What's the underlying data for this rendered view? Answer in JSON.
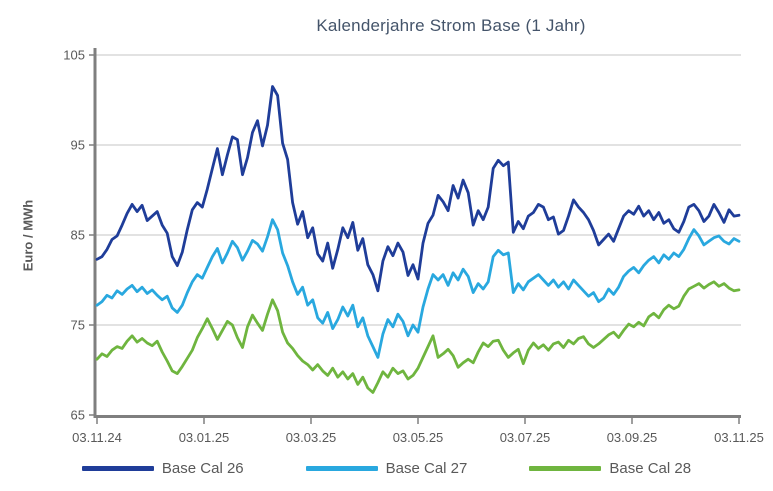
{
  "page": {
    "background": "#FFFFFF"
  },
  "chart_data": {
    "type": "line",
    "title": "Kalenderjahre Strom Base (1 Jahr)",
    "ylabel": "Euro / MWh",
    "xlabel": "",
    "ylim": [
      65,
      105
    ],
    "y_ticks": [
      65,
      75,
      85,
      95,
      105
    ],
    "x_tick_labels": [
      "03.11.24",
      "03.01.25",
      "03.03.25",
      "03.05.25",
      "03.07.25",
      "03.09.25",
      "03.11.25"
    ],
    "grid": true,
    "legend_position": "bottom",
    "colors": {
      "title": "#44546A",
      "axis": "#7F7F7F",
      "gridline": "#D9D9D9",
      "tick_label": "#595959",
      "legend_label": "#595959"
    },
    "series": [
      {
        "name": "Base Cal 26",
        "color": "#1F3D99",
        "values": [
          82.3,
          82.6,
          83.4,
          84.5,
          84.9,
          86.1,
          87.4,
          88.4,
          87.6,
          88.3,
          86.6,
          87.1,
          87.6,
          86.1,
          85.2,
          82.6,
          81.6,
          83.1,
          85.6,
          87.8,
          88.6,
          88.1,
          90.1,
          92.4,
          94.6,
          91.7,
          93.9,
          95.9,
          95.6,
          91.7,
          93.6,
          96.4,
          97.7,
          94.9,
          97.2,
          101.5,
          100.5,
          95.2,
          93.4,
          88.6,
          86.2,
          87.6,
          84.7,
          85.8,
          82.9,
          82.1,
          84.1,
          81.3,
          83.4,
          85.8,
          84.7,
          86.4,
          83.3,
          84.6,
          81.7,
          80.6,
          78.8,
          82.1,
          83.7,
          82.7,
          84.1,
          83.1,
          80.5,
          81.7,
          80.1,
          84.1,
          86.3,
          87.2,
          89.4,
          88.7,
          87.7,
          90.5,
          89.1,
          91.1,
          89.7,
          86.1,
          87.7,
          86.7,
          88.1,
          92.4,
          93.3,
          92.7,
          93.1,
          85.3,
          86.5,
          85.7,
          87.1,
          87.5,
          88.4,
          88.1,
          86.7,
          87.0,
          85.1,
          85.5,
          87.1,
          88.9,
          88.1,
          87.5,
          86.7,
          85.5,
          83.9,
          84.5,
          85.1,
          84.3,
          85.7,
          87.1,
          87.7,
          87.3,
          88.2,
          87.1,
          87.7,
          86.7,
          87.5,
          86.3,
          86.7,
          85.7,
          85.3,
          86.5,
          88.1,
          88.4,
          87.7,
          86.5,
          87.1,
          88.4,
          87.5,
          86.4,
          87.8,
          87.1,
          87.2
        ]
      },
      {
        "name": "Base Cal 27",
        "color": "#29A8DF",
        "values": [
          77.2,
          77.6,
          78.3,
          78.0,
          78.8,
          78.4,
          79.0,
          79.4,
          78.7,
          79.2,
          78.5,
          78.9,
          78.3,
          77.8,
          78.2,
          76.9,
          76.4,
          77.2,
          78.6,
          79.8,
          80.6,
          80.2,
          81.4,
          82.6,
          83.5,
          81.9,
          83.0,
          84.3,
          83.6,
          82.2,
          83.2,
          84.4,
          84.0,
          83.2,
          84.8,
          86.7,
          85.6,
          83.0,
          81.6,
          79.8,
          78.4,
          79.2,
          77.2,
          77.8,
          75.8,
          75.2,
          76.4,
          74.6,
          75.6,
          77.0,
          76.0,
          77.2,
          74.8,
          75.8,
          73.8,
          72.6,
          71.4,
          74.0,
          75.6,
          74.8,
          76.2,
          75.4,
          73.8,
          75.0,
          74.2,
          77.0,
          79.0,
          80.6,
          80.0,
          80.6,
          79.4,
          80.8,
          80.0,
          81.2,
          80.4,
          78.6,
          79.6,
          79.0,
          79.8,
          82.6,
          83.3,
          82.8,
          83.0,
          78.6,
          79.6,
          78.9,
          79.8,
          80.2,
          80.6,
          80.0,
          79.4,
          80.0,
          79.2,
          79.8,
          79.0,
          80.0,
          79.4,
          78.8,
          78.2,
          78.6,
          77.6,
          78.0,
          79.0,
          78.4,
          79.2,
          80.4,
          81.0,
          81.4,
          80.8,
          81.6,
          82.2,
          82.6,
          81.9,
          82.8,
          82.3,
          83.0,
          82.6,
          83.4,
          84.6,
          85.6,
          84.9,
          83.9,
          84.3,
          84.7,
          84.9,
          84.3,
          84.0,
          84.6,
          84.3
        ]
      },
      {
        "name": "Base Cal 28",
        "color": "#6FB53F",
        "values": [
          71.2,
          71.8,
          71.5,
          72.2,
          72.6,
          72.4,
          73.2,
          73.8,
          73.1,
          73.5,
          73.0,
          72.7,
          73.2,
          72.0,
          71.0,
          69.9,
          69.6,
          70.4,
          71.3,
          72.2,
          73.6,
          74.6,
          75.7,
          74.6,
          73.4,
          74.4,
          75.4,
          75.0,
          73.6,
          72.5,
          74.8,
          76.1,
          75.2,
          74.4,
          76.2,
          77.8,
          76.6,
          74.2,
          73.0,
          72.4,
          71.6,
          71.0,
          70.6,
          70.0,
          70.6,
          69.9,
          69.4,
          70.2,
          69.2,
          69.8,
          69.0,
          69.6,
          68.4,
          69.2,
          68.0,
          67.5,
          68.6,
          69.8,
          69.2,
          70.2,
          69.6,
          69.9,
          69.0,
          69.4,
          70.2,
          71.4,
          72.6,
          73.8,
          71.4,
          71.8,
          72.3,
          71.6,
          70.3,
          70.8,
          71.2,
          70.8,
          72.0,
          73.0,
          72.6,
          73.2,
          73.3,
          72.2,
          71.4,
          71.9,
          72.3,
          70.7,
          72.2,
          73.0,
          72.4,
          72.8,
          72.2,
          72.9,
          73.1,
          72.5,
          73.3,
          72.9,
          73.5,
          73.7,
          72.9,
          72.5,
          72.9,
          73.4,
          73.9,
          74.2,
          73.6,
          74.4,
          75.1,
          74.8,
          75.3,
          74.9,
          75.9,
          76.3,
          75.8,
          76.7,
          77.2,
          76.8,
          77.1,
          78.2,
          79.0,
          79.3,
          79.6,
          79.1,
          79.5,
          79.8,
          79.3,
          79.6,
          79.1,
          78.8,
          78.9
        ]
      }
    ]
  }
}
